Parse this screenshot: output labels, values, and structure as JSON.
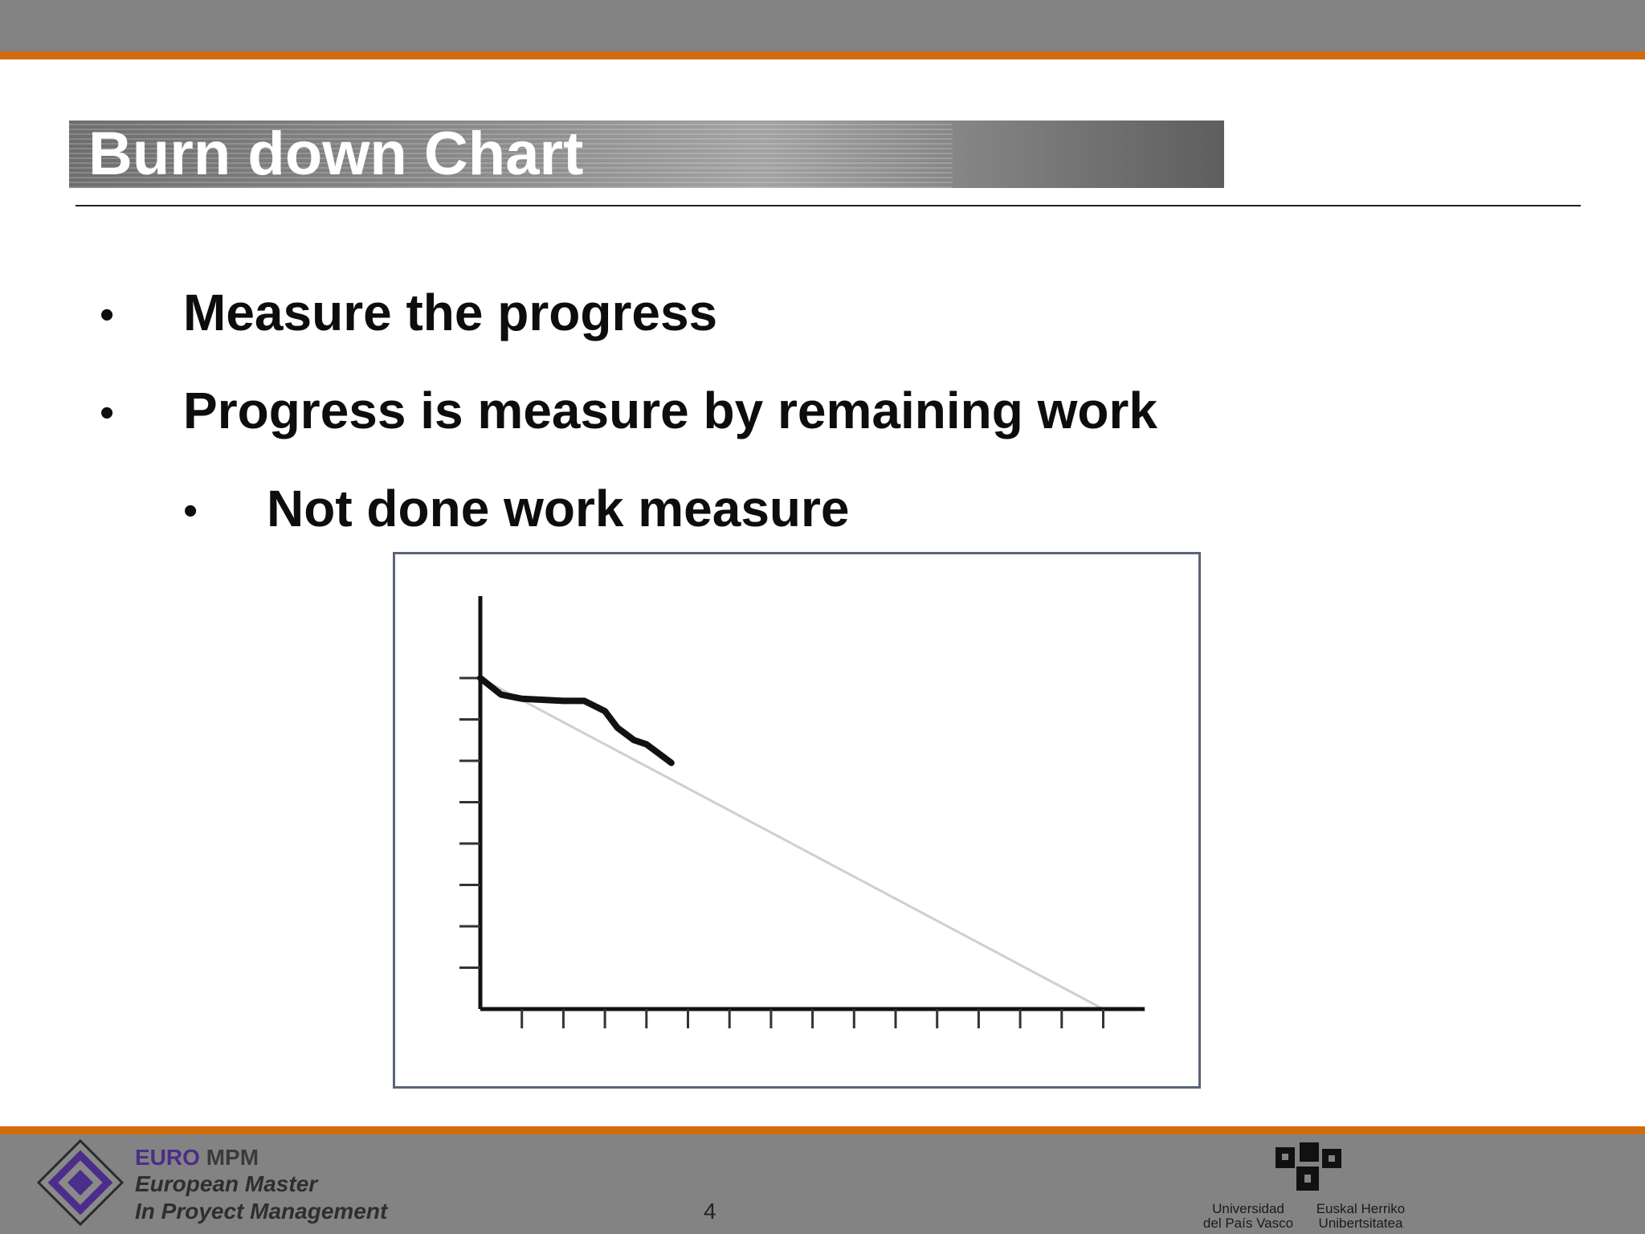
{
  "slide": {
    "title": "Burn down Chart",
    "bullets": [
      {
        "text": "Measure the progress",
        "level": 1
      },
      {
        "text": "Progress is measure by remaining work",
        "level": 1
      },
      {
        "text": "Not done work measure",
        "level": 2
      }
    ],
    "bullet_glyph": "•",
    "page_number": "4"
  },
  "chart_data": {
    "type": "line",
    "title": "",
    "xlabel": "",
    "ylabel": "",
    "x_ticks": 15,
    "y_ticks": 8,
    "tick_labels_shown": false,
    "xlim": [
      0,
      16
    ],
    "ylim": [
      0,
      8
    ],
    "series": [
      {
        "role": "ideal",
        "color": "#cfcfcf",
        "x": [
          0,
          15
        ],
        "y": [
          8,
          0
        ]
      },
      {
        "role": "actual",
        "color": "#111111",
        "x": [
          0,
          0.5,
          1,
          2,
          2.5,
          3,
          3.3,
          3.7,
          4,
          4.4,
          4.6
        ],
        "y": [
          8,
          7.6,
          7.5,
          7.45,
          7.45,
          7.2,
          6.8,
          6.5,
          6.4,
          6.1,
          5.95
        ]
      }
    ]
  },
  "footer": {
    "euro": "EURO",
    "mpm": "MPM",
    "line1": "European Master",
    "line2": "In Proyect Management",
    "university_left_1": "Universidad",
    "university_left_2": "del País Vasco",
    "university_right_1": "Euskal Herriko",
    "university_right_2": "Unibertsitatea",
    "colors": {
      "accent": "#d46a0e",
      "band": "#838383",
      "purple": "#4b2d8a"
    }
  }
}
